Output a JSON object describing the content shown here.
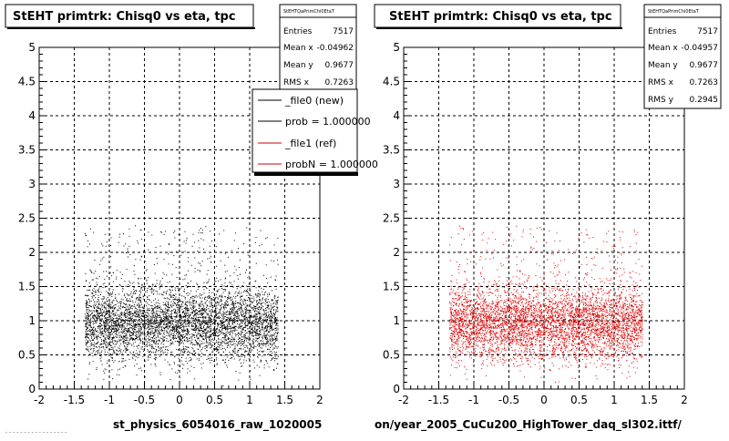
{
  "page": {
    "footer_text": "- - - - - - - - - - - - - - - - -"
  },
  "panels": [
    {
      "title": "StEHT primtrk: Chisq0 vs eta, tpc",
      "xlabel": "st_physics_6054016_raw_1020005",
      "point_color": "#000000",
      "stats": {
        "name": "StEHTQaPrimChi0EtaT",
        "rows": [
          {
            "label": "Entries",
            "value": "7517"
          },
          {
            "label": "Mean x",
            "value": "-0.04962"
          },
          {
            "label": "Mean y",
            "value": "0.9677"
          },
          {
            "label": "RMS x",
            "value": "0.7263"
          }
        ]
      },
      "legend": [
        {
          "label": "_file0 (new)",
          "color": "#000000"
        },
        {
          "label": "prob = 1.000000",
          "color": "#000000"
        },
        {
          "label": "_file1 (ref)",
          "color": "#cc0000"
        },
        {
          "label": "probN = 1.000000",
          "color": "#cc0000"
        }
      ]
    },
    {
      "title": "StEHT primtrk: Chisq0 vs eta, tpc",
      "xlabel": "on/year_2005_CuCu200_HighTower_daq_sl302.ittf/",
      "point_color": "#dd0000",
      "stats": {
        "name": "StEHTQaPrimChi0EtaT",
        "rows": [
          {
            "label": "Entries",
            "value": "7517"
          },
          {
            "label": "Mean x",
            "value": "-0.04957"
          },
          {
            "label": "Mean y",
            "value": "0.9677"
          },
          {
            "label": "RMS x",
            "value": "0.7263"
          },
          {
            "label": "RMS y",
            "value": "0.2945"
          }
        ]
      },
      "legend": []
    }
  ],
  "chart_data": [
    {
      "type": "scatter",
      "title": "StEHT primtrk: Chisq0 vs eta, tpc",
      "xlabel": "st_physics_6054016_raw_1020005",
      "ylabel": "",
      "xlim": [
        -2,
        2
      ],
      "ylim": [
        0,
        5
      ],
      "xticks": [
        "-2",
        "-1.5",
        "-1",
        "-0.5",
        "0",
        "0.5",
        "1",
        "1.5",
        "2"
      ],
      "yticks": [
        "0",
        "0.5",
        "1",
        "1.5",
        "2",
        "2.5",
        "3",
        "3.5",
        "4",
        "4.5",
        "5"
      ],
      "grid": true,
      "entries": 7517,
      "mean_x": -0.04962,
      "mean_y": 0.9677,
      "rms_x": 0.7263,
      "point_color": "#000000",
      "legend_position": "top-right",
      "series": [
        {
          "name": "_file0 (new)",
          "color": "#000000"
        },
        {
          "name": "_file1 (ref)",
          "color": "#cc0000"
        }
      ]
    },
    {
      "type": "scatter",
      "title": "StEHT primtrk: Chisq0 vs eta, tpc",
      "xlabel": "on/year_2005_CuCu200_HighTower_daq_sl302.ittf/",
      "ylabel": "",
      "xlim": [
        -2,
        2
      ],
      "ylim": [
        0,
        5
      ],
      "xticks": [
        "-2",
        "-1.5",
        "-1",
        "-0.5",
        "0",
        "0.5",
        "1",
        "1.5",
        "2"
      ],
      "yticks": [
        "0",
        "0.5",
        "1",
        "1.5",
        "2",
        "2.5",
        "3",
        "3.5",
        "4",
        "4.5",
        "5"
      ],
      "grid": true,
      "entries": 7517,
      "mean_x": -0.04957,
      "mean_y": 0.9677,
      "rms_x": 0.7263,
      "rms_y": 0.2945,
      "point_color": "#dd0000"
    }
  ]
}
